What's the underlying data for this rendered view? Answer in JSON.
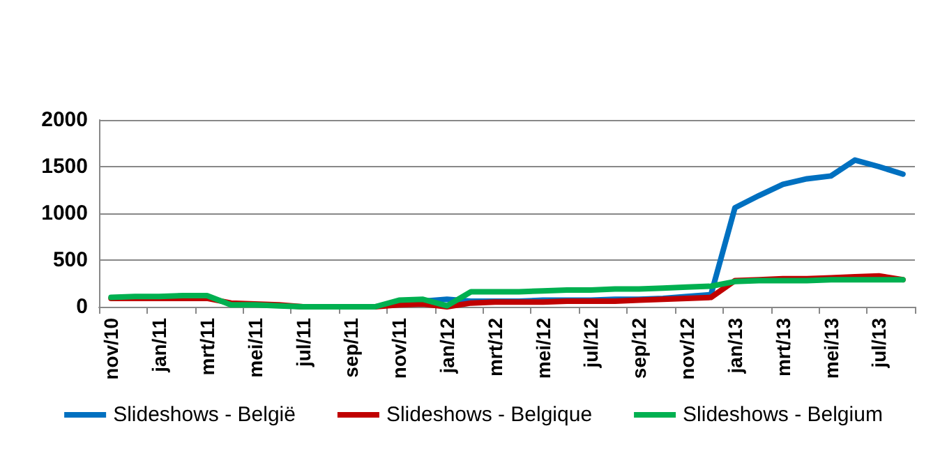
{
  "chart_data": {
    "type": "line",
    "categories": [
      "nov/10",
      null,
      "jan/11",
      null,
      "mrt/11",
      null,
      "mei/11",
      null,
      "jul/11",
      null,
      "sep/11",
      null,
      "nov/11",
      null,
      "jan/12",
      null,
      "mrt/12",
      null,
      "mei/12",
      null,
      "jul/12",
      null,
      "sep/12",
      null,
      "nov/12",
      null,
      "jan/13",
      null,
      "mrt/13",
      null,
      "mei/13",
      null,
      "jul/13",
      null
    ],
    "series": [
      {
        "name": "Slideshows - België",
        "color": "#0070c0",
        "values": [
          null,
          null,
          null,
          null,
          null,
          null,
          null,
          null,
          null,
          null,
          null,
          null,
          40,
          60,
          80,
          60,
          60,
          60,
          70,
          70,
          70,
          80,
          80,
          90,
          110,
          130,
          1060,
          1190,
          1310,
          1370,
          1400,
          1570,
          1500,
          1420
        ]
      },
      {
        "name": "Slideshows - Belgique",
        "color": "#c00000",
        "values": [
          90,
          90,
          90,
          90,
          90,
          40,
          30,
          20,
          0,
          0,
          0,
          0,
          20,
          30,
          0,
          40,
          50,
          50,
          50,
          60,
          60,
          60,
          70,
          80,
          90,
          100,
          280,
          290,
          300,
          300,
          310,
          320,
          330,
          290
        ]
      },
      {
        "name": "Slideshows - Belgium",
        "color": "#00b050",
        "values": [
          100,
          110,
          110,
          120,
          120,
          20,
          20,
          10,
          0,
          0,
          0,
          0,
          70,
          80,
          10,
          160,
          160,
          160,
          170,
          180,
          180,
          190,
          190,
          200,
          210,
          220,
          270,
          280,
          280,
          280,
          290,
          290,
          290,
          290
        ]
      }
    ],
    "ylim": [
      0,
      2000
    ],
    "yticks": [
      0,
      500,
      1000,
      1500,
      2000
    ],
    "grid": "y",
    "legend": "bottom",
    "line_style": "solid",
    "marker": "none"
  }
}
